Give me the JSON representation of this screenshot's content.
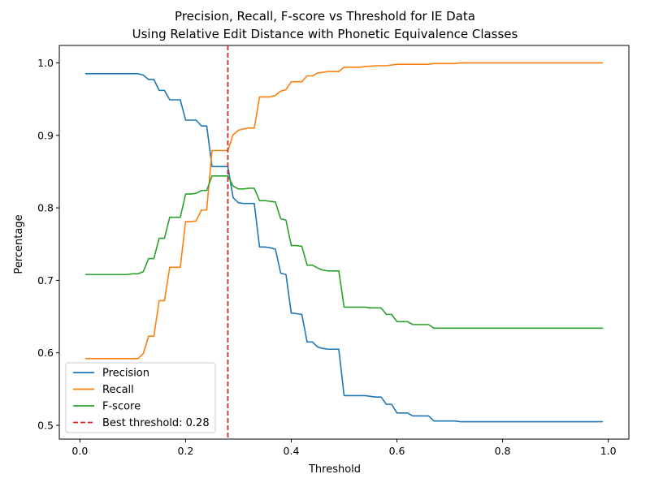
{
  "chart_data": {
    "type": "line",
    "title_line1": "Precision, Recall, F-score vs Threshold for IE Data",
    "title_line2": "Using Relative Edit Distance with Phonetic Equivalence Classes",
    "xlabel": "Threshold",
    "ylabel": "Percentage",
    "xlim": [
      -0.039,
      1.039
    ],
    "ylim": [
      0.481,
      1.024
    ],
    "xticks": [
      0.0,
      0.2,
      0.4,
      0.6,
      0.8,
      1.0
    ],
    "xtick_labels": [
      "0.0",
      "0.2",
      "0.4",
      "0.6",
      "0.8",
      "1.0"
    ],
    "yticks": [
      0.5,
      0.6,
      0.7,
      0.8,
      0.9,
      1.0
    ],
    "ytick_labels": [
      "0.5",
      "0.6",
      "0.7",
      "0.8",
      "0.9",
      "1.0"
    ],
    "grid": false,
    "legend_position": "lower-left",
    "best_threshold": {
      "x": 0.28,
      "label": "Best threshold: 0.28",
      "color": "#d62728"
    },
    "series": [
      {
        "name": "Precision",
        "color": "#1f77b4",
        "points": [
          [
            0.01,
            0.985
          ],
          [
            0.11,
            0.985
          ],
          [
            0.12,
            0.983
          ],
          [
            0.13,
            0.977
          ],
          [
            0.14,
            0.977
          ],
          [
            0.15,
            0.962
          ],
          [
            0.16,
            0.962
          ],
          [
            0.17,
            0.949
          ],
          [
            0.19,
            0.949
          ],
          [
            0.2,
            0.921
          ],
          [
            0.22,
            0.921
          ],
          [
            0.23,
            0.913
          ],
          [
            0.24,
            0.913
          ],
          [
            0.25,
            0.857
          ],
          [
            0.28,
            0.857
          ],
          [
            0.29,
            0.814
          ],
          [
            0.3,
            0.807
          ],
          [
            0.31,
            0.806
          ],
          [
            0.33,
            0.806
          ],
          [
            0.34,
            0.746
          ],
          [
            0.35,
            0.746
          ],
          [
            0.36,
            0.745
          ],
          [
            0.37,
            0.743
          ],
          [
            0.38,
            0.71
          ],
          [
            0.39,
            0.708
          ],
          [
            0.4,
            0.655
          ],
          [
            0.41,
            0.654
          ],
          [
            0.42,
            0.653
          ],
          [
            0.43,
            0.615
          ],
          [
            0.44,
            0.615
          ],
          [
            0.45,
            0.608
          ],
          [
            0.46,
            0.606
          ],
          [
            0.47,
            0.605
          ],
          [
            0.49,
            0.605
          ],
          [
            0.5,
            0.541
          ],
          [
            0.53,
            0.541
          ],
          [
            0.54,
            0.541
          ],
          [
            0.55,
            0.54
          ],
          [
            0.56,
            0.539
          ],
          [
            0.57,
            0.539
          ],
          [
            0.58,
            0.529
          ],
          [
            0.59,
            0.529
          ],
          [
            0.6,
            0.517
          ],
          [
            0.62,
            0.517
          ],
          [
            0.63,
            0.513
          ],
          [
            0.66,
            0.513
          ],
          [
            0.67,
            0.506
          ],
          [
            0.71,
            0.506
          ],
          [
            0.72,
            0.505
          ],
          [
            0.99,
            0.505
          ]
        ]
      },
      {
        "name": "Recall",
        "color": "#ff7f0e",
        "points": [
          [
            0.01,
            0.592
          ],
          [
            0.11,
            0.592
          ],
          [
            0.12,
            0.599
          ],
          [
            0.13,
            0.623
          ],
          [
            0.14,
            0.623
          ],
          [
            0.15,
            0.672
          ],
          [
            0.16,
            0.672
          ],
          [
            0.17,
            0.718
          ],
          [
            0.19,
            0.718
          ],
          [
            0.2,
            0.781
          ],
          [
            0.21,
            0.781
          ],
          [
            0.22,
            0.782
          ],
          [
            0.23,
            0.797
          ],
          [
            0.24,
            0.797
          ],
          [
            0.25,
            0.879
          ],
          [
            0.28,
            0.879
          ],
          [
            0.29,
            0.901
          ],
          [
            0.3,
            0.907
          ],
          [
            0.31,
            0.909
          ],
          [
            0.32,
            0.91
          ],
          [
            0.33,
            0.91
          ],
          [
            0.34,
            0.953
          ],
          [
            0.36,
            0.953
          ],
          [
            0.37,
            0.955
          ],
          [
            0.38,
            0.961
          ],
          [
            0.39,
            0.963
          ],
          [
            0.4,
            0.974
          ],
          [
            0.42,
            0.974
          ],
          [
            0.43,
            0.982
          ],
          [
            0.44,
            0.982
          ],
          [
            0.45,
            0.986
          ],
          [
            0.46,
            0.987
          ],
          [
            0.47,
            0.988
          ],
          [
            0.49,
            0.988
          ],
          [
            0.5,
            0.994
          ],
          [
            0.53,
            0.994
          ],
          [
            0.54,
            0.995
          ],
          [
            0.56,
            0.996
          ],
          [
            0.58,
            0.996
          ],
          [
            0.6,
            0.998
          ],
          [
            0.66,
            0.998
          ],
          [
            0.67,
            0.999
          ],
          [
            0.71,
            0.999
          ],
          [
            0.72,
            1.0
          ],
          [
            0.99,
            1.0
          ]
        ]
      },
      {
        "name": "F-score",
        "color": "#2ca02c",
        "points": [
          [
            0.01,
            0.708
          ],
          [
            0.09,
            0.708
          ],
          [
            0.1,
            0.709
          ],
          [
            0.11,
            0.709
          ],
          [
            0.12,
            0.712
          ],
          [
            0.13,
            0.73
          ],
          [
            0.14,
            0.73
          ],
          [
            0.15,
            0.758
          ],
          [
            0.16,
            0.758
          ],
          [
            0.17,
            0.787
          ],
          [
            0.19,
            0.787
          ],
          [
            0.2,
            0.819
          ],
          [
            0.21,
            0.819
          ],
          [
            0.22,
            0.82
          ],
          [
            0.23,
            0.824
          ],
          [
            0.24,
            0.824
          ],
          [
            0.25,
            0.844
          ],
          [
            0.28,
            0.844
          ],
          [
            0.29,
            0.83
          ],
          [
            0.3,
            0.826
          ],
          [
            0.31,
            0.826
          ],
          [
            0.32,
            0.827
          ],
          [
            0.33,
            0.827
          ],
          [
            0.34,
            0.81
          ],
          [
            0.35,
            0.81
          ],
          [
            0.36,
            0.809
          ],
          [
            0.37,
            0.808
          ],
          [
            0.38,
            0.785
          ],
          [
            0.39,
            0.783
          ],
          [
            0.4,
            0.748
          ],
          [
            0.41,
            0.748
          ],
          [
            0.42,
            0.747
          ],
          [
            0.43,
            0.721
          ],
          [
            0.44,
            0.721
          ],
          [
            0.45,
            0.717
          ],
          [
            0.46,
            0.714
          ],
          [
            0.47,
            0.713
          ],
          [
            0.49,
            0.713
          ],
          [
            0.5,
            0.663
          ],
          [
            0.53,
            0.663
          ],
          [
            0.54,
            0.663
          ],
          [
            0.55,
            0.662
          ],
          [
            0.56,
            0.662
          ],
          [
            0.57,
            0.662
          ],
          [
            0.58,
            0.653
          ],
          [
            0.59,
            0.653
          ],
          [
            0.6,
            0.643
          ],
          [
            0.62,
            0.643
          ],
          [
            0.63,
            0.639
          ],
          [
            0.66,
            0.639
          ],
          [
            0.67,
            0.634
          ],
          [
            0.71,
            0.634
          ],
          [
            0.72,
            0.634
          ],
          [
            0.99,
            0.634
          ]
        ]
      }
    ]
  }
}
